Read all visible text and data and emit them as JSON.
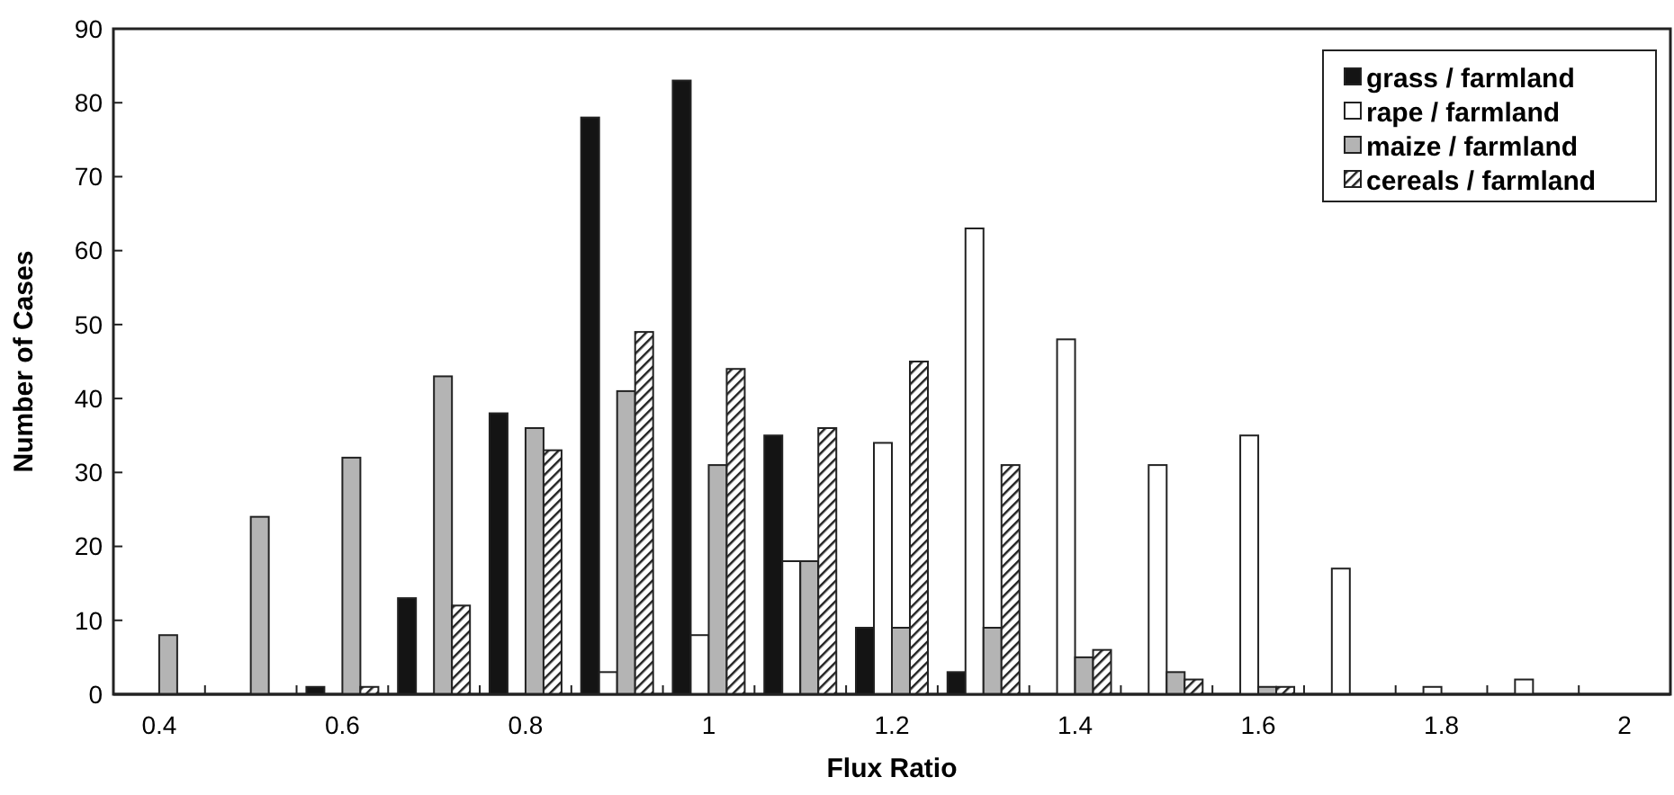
{
  "chart_data": {
    "type": "bar",
    "xlabel": "Flux Ratio",
    "ylabel": "Number of Cases",
    "categories": [
      "0.4",
      null,
      "0.6",
      null,
      "0.8",
      null,
      "1",
      null,
      "1.2",
      null,
      "1.4",
      null,
      "1.6",
      null,
      "1.8",
      null,
      "2"
    ],
    "series": [
      {
        "name": "grass / farmland",
        "color": "#141414",
        "values": [
          0,
          0,
          1,
          13,
          38,
          78,
          83,
          35,
          9,
          3,
          0,
          0,
          0,
          0,
          0,
          0,
          0
        ]
      },
      {
        "name": "rape / farmland",
        "color": "#ffffff",
        "values": [
          0,
          0,
          0,
          0,
          0,
          3,
          8,
          18,
          34,
          63,
          48,
          31,
          35,
          17,
          1,
          2,
          0
        ]
      },
      {
        "name": "maize / farmland",
        "color": "#b4b4b4",
        "values": [
          8,
          24,
          32,
          43,
          36,
          41,
          31,
          18,
          9,
          9,
          5,
          3,
          1,
          0,
          0,
          0,
          0
        ]
      },
      {
        "name": "cereals / farmland",
        "color": "#222222",
        "values": [
          0,
          0,
          1,
          12,
          33,
          49,
          44,
          36,
          45,
          31,
          6,
          2,
          1,
          0,
          0,
          0,
          0
        ]
      }
    ],
    "ylim": [
      0,
      90
    ],
    "yticks": [
      0,
      10,
      20,
      30,
      40,
      50,
      60,
      70,
      80,
      90
    ],
    "grid": false,
    "legend": "top right"
  }
}
